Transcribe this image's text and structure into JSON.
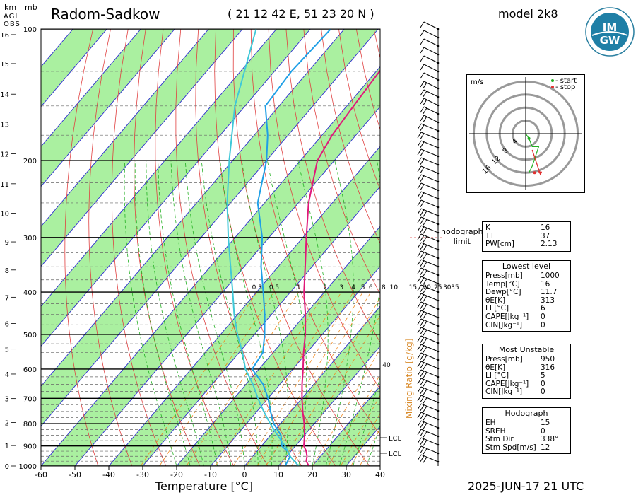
{
  "header": {
    "title": "Radom-Sadkow",
    "coords": "( 21 12 42 E, 51 23 20 N )",
    "model": "model 2k8",
    "unit_km": "km",
    "unit_mb": "mb",
    "agl": "AGL",
    "obs": "OBS",
    "datetime": "2025-JUN-17   21 UTC",
    "logo_text": "IMGW"
  },
  "chart_data": {
    "type": "line",
    "xlabel": "Temperature [°C]",
    "x_ticks": [
      -60,
      -50,
      -40,
      -30,
      -20,
      -10,
      0,
      10,
      20,
      30,
      40
    ],
    "xlim": [
      -60,
      40
    ],
    "pressure_levels_labeled": [
      100,
      200,
      300,
      400,
      500,
      600,
      700,
      800,
      900,
      1000
    ],
    "height_ticks_km": [
      0,
      1,
      2,
      3,
      4,
      5,
      6,
      7,
      8,
      9,
      10,
      11,
      12,
      13,
      14,
      15,
      16
    ],
    "mixing_ratio_label": "Mixing Ratio [g/kg]",
    "mixing_ratio_ticks": [
      "0.3",
      "0.5",
      "1",
      "2",
      "3",
      "4",
      "5",
      "6",
      "8",
      "10",
      "15",
      "20",
      "25",
      "30",
      "35",
      "40"
    ],
    "lcl_labels": [
      "LCL",
      "LCL"
    ],
    "series": [
      {
        "name": "",
        "color": "#e0187a",
        "points": [
          [
            1000,
            19
          ],
          [
            975,
            17
          ],
          [
            950,
            16
          ],
          [
            925,
            14.5
          ],
          [
            900,
            12.5
          ],
          [
            850,
            10
          ],
          [
            800,
            7
          ],
          [
            750,
            3.5
          ],
          [
            700,
            0
          ],
          [
            650,
            -3.5
          ],
          [
            600,
            -7
          ],
          [
            550,
            -11
          ],
          [
            500,
            -15
          ],
          [
            450,
            -20
          ],
          [
            400,
            -26
          ],
          [
            350,
            -32
          ],
          [
            300,
            -39
          ],
          [
            250,
            -47
          ],
          [
            200,
            -55
          ],
          [
            175,
            -57
          ],
          [
            150,
            -58
          ],
          [
            125,
            -59
          ],
          [
            100,
            -58
          ]
        ]
      },
      {
        "name": "",
        "color": "#1e9fe6",
        "points": [
          [
            1000,
            12
          ],
          [
            975,
            11.5
          ],
          [
            950,
            11
          ],
          [
            925,
            9
          ],
          [
            900,
            6
          ],
          [
            850,
            3
          ],
          [
            800,
            -2
          ],
          [
            750,
            -6
          ],
          [
            700,
            -10
          ],
          [
            650,
            -15
          ],
          [
            600,
            -22
          ],
          [
            550,
            -23
          ],
          [
            500,
            -27
          ],
          [
            450,
            -32
          ],
          [
            400,
            -38
          ],
          [
            350,
            -45
          ],
          [
            300,
            -52
          ],
          [
            250,
            -62
          ],
          [
            200,
            -70
          ],
          [
            175,
            -76
          ],
          [
            150,
            -84
          ],
          [
            125,
            -85
          ],
          [
            100,
            -84
          ]
        ]
      },
      {
        "name": "",
        "color": "#40c8d8",
        "points": [
          [
            1000,
            16
          ],
          [
            950,
            11
          ],
          [
            900,
            7
          ],
          [
            850,
            2
          ],
          [
            800,
            -3
          ],
          [
            750,
            -8
          ],
          [
            700,
            -13
          ],
          [
            650,
            -18
          ],
          [
            600,
            -24
          ],
          [
            550,
            -29
          ],
          [
            500,
            -35
          ],
          [
            450,
            -41
          ],
          [
            400,
            -47
          ],
          [
            350,
            -54
          ],
          [
            300,
            -62
          ],
          [
            250,
            -71
          ],
          [
            200,
            -81
          ],
          [
            150,
            -93
          ],
          [
            100,
            -106
          ]
        ]
      }
    ]
  },
  "hodograph": {
    "unit": "m/s",
    "legend_start": "- start",
    "legend_stop": "- stop",
    "ring_labels": [
      "4",
      "8",
      "12",
      "16"
    ],
    "points": [
      [
        0,
        0
      ],
      [
        1,
        -1.5
      ],
      [
        2,
        -4
      ],
      [
        4,
        -4
      ],
      [
        3,
        -7
      ],
      [
        2,
        -10
      ],
      [
        1,
        -12
      ]
    ],
    "limit_label": "hodograph\nlimit"
  },
  "indices": {
    "basic": [
      {
        "k": "K",
        "v": "16"
      },
      {
        "k": "TT",
        "v": "37"
      },
      {
        "k": "PW[cm]",
        "v": "2.13"
      }
    ],
    "lowest_title": "Lowest level",
    "lowest": [
      {
        "k": "Press[mb]",
        "v": "1000"
      },
      {
        "k": "Temp[°C]",
        "v": "16"
      },
      {
        "k": "Dewp[°C]",
        "v": "11.7"
      },
      {
        "k": "θE[K]",
        "v": "313"
      },
      {
        "k": "LI [°C]",
        "v": "6"
      },
      {
        "k": "CAPE[Jkg⁻¹]",
        "v": "0"
      },
      {
        "k": "CIN[Jkg⁻¹]",
        "v": "0"
      }
    ],
    "unstable_title": "Most Unstable",
    "unstable": [
      {
        "k": "Press[mb]",
        "v": "950"
      },
      {
        "k": "θE[K]",
        "v": "316"
      },
      {
        "k": "LI [°C]",
        "v": "5"
      },
      {
        "k": "CAPE[Jkg⁻¹]",
        "v": "0"
      },
      {
        "k": "CIN[Jkg⁻¹]",
        "v": "0"
      }
    ],
    "hodo_title": "Hodograph",
    "hodo": [
      {
        "k": "EH",
        "v": "15"
      },
      {
        "k": "SREH",
        "v": "0"
      },
      {
        "k": "Stm Dir",
        "v": "338°"
      },
      {
        "k": "Stm Spd[m/s]",
        "v": "12"
      }
    ]
  },
  "colors": {
    "dry_adiabat_band": "#aaf0a0",
    "isotherm": "#2a2ad0",
    "dry_adiabat": "#e04040",
    "moist_adiabat": "#22b022",
    "mixing_ratio": "#f08a20"
  }
}
